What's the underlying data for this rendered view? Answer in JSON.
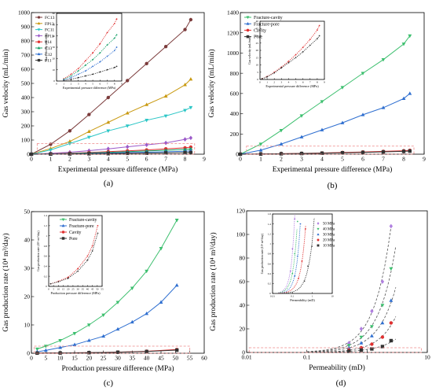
{
  "chart_data": [
    {
      "panel": "(a)",
      "type": "line",
      "xlabel": "Experimental pressure difference (MPa)",
      "ylabel": "Gas velocity (mL/min)",
      "xlim": [
        0,
        9
      ],
      "ylim": [
        0,
        1000
      ],
      "xticks": [
        0,
        1,
        2,
        3,
        4,
        5,
        6,
        7,
        8,
        9
      ],
      "yticks": [
        0,
        100,
        200,
        300,
        400,
        500,
        600,
        700,
        800,
        900,
        1000
      ],
      "legend_position": "top-left",
      "series": [
        {
          "name": "FC13",
          "color": "#7b3b3b",
          "marker": "circle",
          "x": [
            0,
            1,
            2,
            3,
            4,
            5,
            6,
            7,
            8,
            8.3
          ],
          "y": [
            0,
            70,
            165,
            280,
            400,
            520,
            640,
            760,
            880,
            950
          ]
        },
        {
          "name": "FP13",
          "color": "#c99a12",
          "marker": "triangle",
          "x": [
            0,
            1,
            2,
            3,
            4,
            5,
            6,
            7,
            8,
            8.3
          ],
          "y": [
            0,
            40,
            90,
            160,
            225,
            290,
            350,
            410,
            490,
            530
          ]
        },
        {
          "name": "FC11",
          "color": "#2cc6c6",
          "marker": "triangle-down",
          "x": [
            0,
            1,
            2,
            3,
            4,
            5,
            6,
            7,
            8,
            8.3
          ],
          "y": [
            0,
            30,
            75,
            120,
            165,
            200,
            240,
            270,
            310,
            330
          ]
        },
        {
          "name": "FP11",
          "color": "#9b59c9",
          "marker": "diamond",
          "x": [
            0,
            1,
            2,
            3,
            4,
            5,
            6,
            7,
            8,
            8.3
          ],
          "y": [
            0,
            6,
            14,
            25,
            38,
            52,
            66,
            80,
            105,
            115
          ]
        },
        {
          "name": "P14",
          "color": "#e03030",
          "marker": "circle",
          "x": [
            0,
            1,
            2,
            3,
            4,
            5,
            6,
            7,
            8,
            8.3
          ],
          "y": [
            0,
            3,
            7,
            12,
            18,
            24,
            30,
            38,
            45,
            50
          ]
        },
        {
          "name": "C13",
          "color": "#14a066",
          "marker": "triangle",
          "x": [
            0,
            1,
            2,
            3,
            4,
            5,
            6,
            7,
            8,
            8.3
          ],
          "y": [
            0,
            2,
            5,
            9,
            13,
            18,
            23,
            28,
            34,
            38
          ]
        },
        {
          "name": "C12",
          "color": "#2f6fd0",
          "marker": "triangle",
          "x": [
            0,
            1,
            2,
            3,
            4,
            5,
            6,
            7,
            8,
            8.3
          ],
          "y": [
            0,
            1,
            3,
            5,
            8,
            11,
            14,
            17,
            21,
            24
          ]
        },
        {
          "name": "P11",
          "color": "#333333",
          "marker": "square",
          "x": [
            0,
            1,
            2,
            3,
            4,
            5,
            6,
            7,
            8,
            8.3
          ],
          "y": [
            0,
            1,
            2,
            3,
            4,
            6,
            7,
            9,
            11,
            12
          ]
        }
      ],
      "inset": {
        "xlabel": "Experimental pressure difference (MPa)",
        "ylabel": "Gas velocity (mL/min)",
        "xlim": [
          0,
          9
        ],
        "ylim": [
          0,
          60
        ],
        "xticks": [
          0,
          1,
          2,
          3,
          4,
          5,
          6,
          7,
          8,
          9
        ],
        "yticks": [
          0,
          10,
          20,
          30,
          40,
          50,
          60
        ],
        "series": [
          {
            "name": "FC13",
            "color": "#e03030",
            "x": [
              1,
              2,
              3,
              4,
              5,
              6,
              7,
              8,
              8.3
            ],
            "y": [
              2,
              6,
              11,
              18,
              25,
              33,
              43,
              51,
              55
            ]
          },
          {
            "name": "C13",
            "color": "#14a066",
            "x": [
              1,
              2,
              3,
              4,
              5,
              6,
              7,
              8,
              8.3
            ],
            "y": [
              1.5,
              4.5,
              9,
              14,
              19,
              25,
              32,
              38,
              41
            ]
          },
          {
            "name": "C12",
            "color": "#2f6fd0",
            "x": [
              1,
              2,
              3,
              4,
              5,
              6,
              7,
              8,
              8.3
            ],
            "y": [
              1,
              3,
              6,
              9,
              13,
              17,
              22,
              27,
              30
            ]
          },
          {
            "name": "P11",
            "color": "#333333",
            "x": [
              1,
              2,
              3,
              4,
              5,
              6,
              7,
              8,
              8.3
            ],
            "y": [
              0.5,
              1.5,
              3,
              4.5,
              6,
              8,
              10,
              12,
              13
            ]
          }
        ]
      }
    },
    {
      "panel": "(b)",
      "type": "line",
      "xlabel": "Experimental pressure difference (MPa)",
      "ylabel": "Gas velocity (mL/min)",
      "xlim": [
        0,
        9
      ],
      "ylim": [
        0,
        1400
      ],
      "xticks": [
        0,
        1,
        2,
        3,
        4,
        5,
        6,
        7,
        8,
        9
      ],
      "yticks": [
        0,
        200,
        400,
        600,
        800,
        1000,
        1200,
        1400
      ],
      "legend_position": "top-left",
      "series": [
        {
          "name": "Fracture-cavity",
          "color": "#3cbf6e",
          "marker": "triangle-down",
          "x": [
            0,
            1,
            2,
            3,
            4,
            5,
            6,
            7,
            8,
            8.3
          ],
          "y": [
            0,
            100,
            235,
            380,
            520,
            660,
            800,
            935,
            1090,
            1170
          ]
        },
        {
          "name": "Fracture-pore",
          "color": "#2f6fd0",
          "marker": "triangle",
          "x": [
            0,
            1,
            2,
            3,
            4,
            5,
            6,
            7,
            8,
            8.3
          ],
          "y": [
            0,
            40,
            100,
            170,
            240,
            310,
            390,
            460,
            550,
            600
          ]
        },
        {
          "name": "Cavity",
          "color": "#e03030",
          "marker": "circle",
          "x": [
            0,
            1,
            2,
            3,
            4,
            5,
            6,
            7,
            8,
            8.3
          ],
          "y": [
            0,
            2,
            5,
            8,
            12,
            17,
            22,
            28,
            34,
            38
          ]
        },
        {
          "name": "Pore",
          "color": "#333333",
          "marker": "square",
          "x": [
            0,
            1,
            2,
            3,
            4,
            5,
            6,
            7,
            8,
            8.3
          ],
          "y": [
            0,
            1.5,
            4,
            7,
            10,
            14,
            18,
            23,
            28,
            31
          ]
        }
      ],
      "inset": {
        "xlabel": "Experimental pressure difference (MPa)",
        "ylabel": "Gas velocity (mL/min)",
        "xlim": [
          0,
          9
        ],
        "ylim": [
          0,
          40
        ],
        "xticks": [
          0,
          1,
          2,
          3,
          4,
          5,
          6,
          7,
          8,
          9
        ],
        "yticks": [
          0,
          5,
          10,
          15,
          20,
          25,
          30,
          35,
          40
        ],
        "series": [
          {
            "name": "Cavity",
            "color": "#e03030",
            "x": [
              0.3,
              1,
              2,
              3,
              4,
              5,
              6,
              7,
              8,
              8.3
            ],
            "y": [
              0.5,
              2,
              5,
              8.5,
              12.5,
              17,
              22,
              27.5,
              34,
              37
            ]
          },
          {
            "name": "Pore",
            "color": "#333333",
            "x": [
              0.3,
              1,
              2,
              3,
              4,
              5,
              6,
              7,
              8,
              8.3
            ],
            "y": [
              0.5,
              1.8,
              4.5,
              8,
              11.5,
              15,
              19,
              23.5,
              28,
              30
            ]
          }
        ]
      }
    },
    {
      "panel": "(c)",
      "type": "line",
      "xlabel": "Production pressure difference (MPa)",
      "ylabel": "Gas production rate (10⁴ m³/day)",
      "xlim": [
        0,
        60
      ],
      "ylim": [
        0,
        50
      ],
      "xticks": [
        0,
        5,
        10,
        15,
        20,
        25,
        30,
        35,
        40,
        45,
        50,
        55,
        60
      ],
      "yticks": [
        0,
        10,
        20,
        30,
        40,
        50
      ],
      "legend_position": "top-left",
      "series": [
        {
          "name": "Fracture-cavity",
          "color": "#3cbf6e",
          "marker": "triangle-down",
          "x": [
            2,
            5,
            10,
            15,
            20,
            25,
            30,
            35,
            40,
            45,
            50.5
          ],
          "y": [
            1.5,
            2.5,
            4.5,
            7,
            10,
            13.5,
            18,
            23,
            29,
            37,
            47
          ]
        },
        {
          "name": "Fracture-pore",
          "color": "#2f6fd0",
          "marker": "triangle",
          "x": [
            2,
            5,
            10,
            15,
            20,
            25,
            30,
            35,
            40,
            45,
            50.5
          ],
          "y": [
            0.5,
            1,
            2,
            3,
            4.5,
            6,
            8.5,
            11,
            14,
            18,
            24
          ]
        },
        {
          "name": "Cavity",
          "color": "#e03030",
          "marker": "circle",
          "x": [
            2,
            10,
            20,
            30,
            40,
            50.5
          ],
          "y": [
            0.05,
            0.1,
            0.2,
            0.4,
            0.7,
            1.3
          ]
        },
        {
          "name": "Pore",
          "color": "#333333",
          "marker": "square",
          "x": [
            2,
            10,
            20,
            30,
            40,
            50.5
          ],
          "y": [
            0.05,
            0.1,
            0.2,
            0.35,
            0.6,
            1.1
          ]
        }
      ],
      "inset": {
        "xlabel": "Production pressure difference (MPa)",
        "ylabel": "Gas production rate (10⁴ m³/day)",
        "xlim": [
          0,
          55
        ],
        "ylim": [
          0,
          1.4
        ],
        "xticks": [
          0,
          5,
          10,
          15,
          20,
          25,
          30,
          35,
          40,
          45,
          50,
          55
        ],
        "yticks": [
          0,
          0.2,
          0.4,
          0.6,
          0.8,
          1.0,
          1.2,
          1.4
        ],
        "series": [
          {
            "name": "Cavity",
            "color": "#e03030",
            "x": [
              2,
              10,
              20,
              30,
              40,
              45,
              50.5
            ],
            "y": [
              0.05,
              0.1,
              0.18,
              0.35,
              0.6,
              0.8,
              1.2
            ]
          },
          {
            "name": "Pore",
            "color": "#333333",
            "x": [
              2,
              10,
              20,
              30,
              40,
              45,
              50.5
            ],
            "y": [
              0.05,
              0.09,
              0.16,
              0.3,
              0.52,
              0.7,
              1.05
            ]
          }
        ]
      }
    },
    {
      "panel": "(d)",
      "type": "scatter",
      "xlabel": "Permeability (mD)",
      "ylabel": "Gas production rate (10⁴ m³/day)",
      "xscale": "log",
      "xlim": [
        0.01,
        10
      ],
      "ylim": [
        0,
        120
      ],
      "xticks": [
        0.01,
        0.1,
        1,
        10
      ],
      "xtick_labels": [
        "0.01",
        "0.1",
        "1",
        "10"
      ],
      "yticks": [
        0,
        20,
        40,
        60,
        80,
        100,
        120
      ],
      "legend_position": "top-left (inside inset)",
      "series": [
        {
          "name": "50 MPa",
          "color": "#b07fe0",
          "marker": "diamond",
          "x": [
            0.5,
            0.8,
            1.2,
            1.8,
            2.5
          ],
          "y": [
            8,
            20,
            35,
            60,
            107
          ]
        },
        {
          "name": "40 MPa",
          "color": "#3cbf6e",
          "marker": "triangle-down",
          "x": [
            0.5,
            0.8,
            1.2,
            1.8,
            2.5
          ],
          "y": [
            6,
            13,
            22,
            40,
            71
          ]
        },
        {
          "name": "30 MPa",
          "color": "#2f6fd0",
          "marker": "triangle",
          "x": [
            0.5,
            0.8,
            1.2,
            1.8,
            2.5
          ],
          "y": [
            4,
            8,
            14,
            25,
            44
          ]
        },
        {
          "name": "20 MPa",
          "color": "#e03030",
          "marker": "circle",
          "x": [
            0.5,
            0.8,
            1.2,
            1.8,
            2.5
          ],
          "y": [
            2,
            4,
            7,
            13,
            25
          ]
        },
        {
          "name": "10 MPa",
          "color": "#333333",
          "marker": "square",
          "x": [
            0.5,
            0.8,
            1.2,
            1.8,
            2.5
          ],
          "y": [
            1,
            2,
            3,
            5,
            10
          ]
        }
      ],
      "inset": {
        "xlabel": "Permeability (mD)",
        "ylabel": "Gas production rate (10⁴ m³/day)",
        "xscale": "log",
        "xlim": [
          0.01,
          10
        ],
        "ylim": [
          0,
          1.6
        ],
        "xticks": [
          0.01,
          0.1,
          1,
          10
        ],
        "xtick_labels": [
          "0.01",
          "0.1",
          "1",
          "10"
        ],
        "yticks": [
          0,
          0.2,
          0.4,
          0.6,
          0.8,
          1.0,
          1.2,
          1.4,
          1.6
        ],
        "series": [
          {
            "name": "50 MPa",
            "color": "#b07fe0",
            "x": [
              0.08,
              0.1,
              0.13
            ],
            "y": [
              0.45,
              0.9,
              1.5
            ]
          },
          {
            "name": "40 MPa",
            "color": "#3cbf6e",
            "x": [
              0.1,
              0.13,
              0.18
            ],
            "y": [
              0.4,
              0.8,
              1.45
            ]
          },
          {
            "name": "30 MPa",
            "color": "#2f6fd0",
            "x": [
              0.13,
              0.18,
              0.25
            ],
            "y": [
              0.35,
              0.75,
              1.4
            ]
          },
          {
            "name": "20 MPa",
            "color": "#e03030",
            "x": [
              0.2,
              0.3,
              0.45
            ],
            "y": [
              0.3,
              0.65,
              1.3
            ]
          },
          {
            "name": "10 MPa",
            "color": "#333333",
            "x": [
              0.4,
              0.6,
              0.95
            ],
            "y": [
              0.25,
              0.55,
              0.95
            ]
          }
        ]
      }
    }
  ]
}
